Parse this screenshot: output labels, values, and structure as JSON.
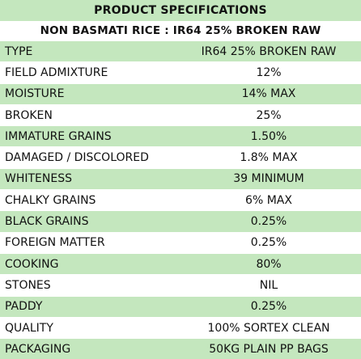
{
  "header": {
    "title": "PRODUCT SPECIFICATIONS",
    "subtitle": "NON BASMATI RICE : IR64 25% BROKEN RAW"
  },
  "colors": {
    "shade": "#c4e7be",
    "plain": "#ffffff",
    "text": "#111111"
  },
  "rows": [
    {
      "label": "TYPE",
      "value": "IR64 25% BROKEN RAW"
    },
    {
      "label": "FIELD ADMIXTURE",
      "value": "12%"
    },
    {
      "label": "MOISTURE",
      "value": "14% MAX"
    },
    {
      "label": "BROKEN",
      "value": "25%"
    },
    {
      "label": "IMMATURE GRAINS",
      "value": "1.50%"
    },
    {
      "label": "DAMAGED / DISCOLORED",
      "value": "1.8% MAX"
    },
    {
      "label": "WHITENESS",
      "value": "39 MINIMUM"
    },
    {
      "label": "CHALKY GRAINS",
      "value": "6% MAX"
    },
    {
      "label": "BLACK GRAINS",
      "value": "0.25%"
    },
    {
      "label": "FOREIGN MATTER",
      "value": "0.25%"
    },
    {
      "label": "COOKING",
      "value": "80%"
    },
    {
      "label": "STONES",
      "value": "NIL"
    },
    {
      "label": "PADDY",
      "value": "0.25%"
    },
    {
      "label": "QUALITY",
      "value": "100% SORTEX CLEAN"
    },
    {
      "label": "PACKAGING",
      "value": "50KG PLAIN PP BAGS"
    }
  ]
}
